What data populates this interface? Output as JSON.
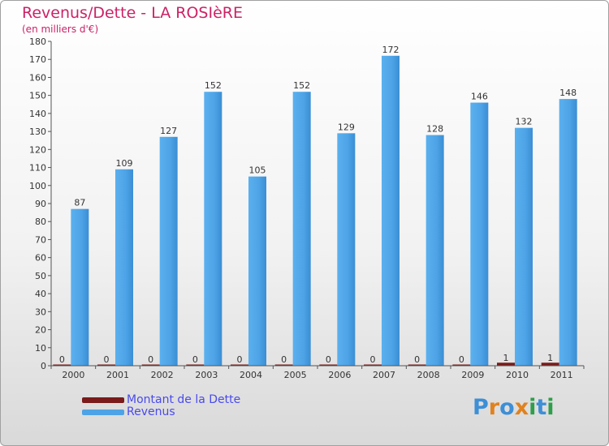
{
  "chart_data": {
    "type": "bar",
    "title": "Revenus/Dette - LA ROSIèRE",
    "subtitle": "(en milliers d'€)",
    "categories": [
      "2000",
      "2001",
      "2002",
      "2003",
      "2004",
      "2005",
      "2006",
      "2007",
      "2008",
      "2009",
      "2010",
      "2011"
    ],
    "series": [
      {
        "name": "Montant de la Dette",
        "values": [
          0,
          0,
          0,
          0,
          0,
          0,
          0,
          0,
          0,
          0,
          1,
          1
        ],
        "color": "#7a1a1a"
      },
      {
        "name": "Revenus",
        "values": [
          87,
          109,
          127,
          152,
          105,
          152,
          129,
          172,
          128,
          146,
          132,
          148
        ],
        "color": "#4da3e6"
      }
    ],
    "ylim": [
      0,
      180
    ],
    "yticks": [
      0,
      10,
      20,
      30,
      40,
      50,
      60,
      70,
      80,
      90,
      100,
      110,
      120,
      130,
      140,
      150,
      160,
      170,
      180
    ],
    "legend_position": "bottom-left",
    "grid": false
  },
  "branding": {
    "name": "Proxiti",
    "letters": [
      {
        "ch": "P",
        "color": "#3d8fd6"
      },
      {
        "ch": "r",
        "color": "#e0821e"
      },
      {
        "ch": "o",
        "color": "#3d8fd6"
      },
      {
        "ch": "x",
        "color": "#e0821e"
      },
      {
        "ch": "i",
        "color": "#2e9e4a"
      },
      {
        "ch": "t",
        "color": "#3d8fd6"
      },
      {
        "ch": "i",
        "color": "#2e9e4a"
      }
    ]
  }
}
